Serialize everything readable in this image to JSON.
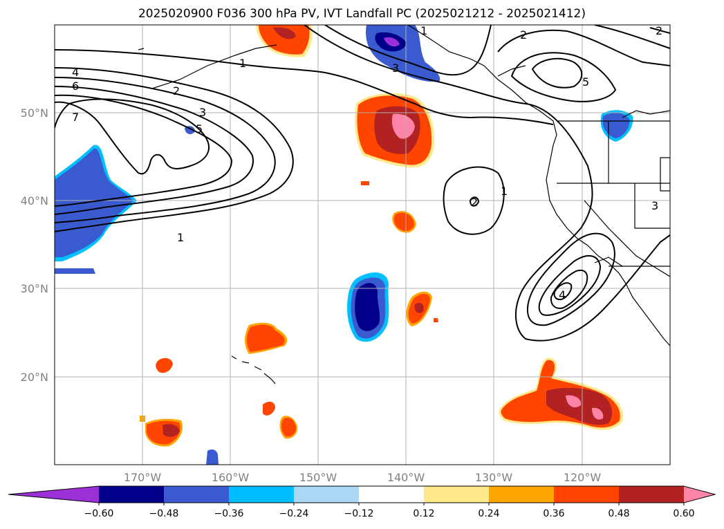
{
  "title": "2025020900 F036 300 hPa PV, IVT Landfall PC (2025021212 - 2025021412)",
  "lat_labels": [
    "50°N",
    "40°N",
    "30°N",
    "20°N"
  ],
  "lon_labels": [
    "170°W",
    "160°W",
    "150°W",
    "140°W",
    "130°W",
    "120°W"
  ],
  "colorbar": {
    "ticks": [
      "−0.60",
      "−0.48",
      "−0.36",
      "−0.24",
      "−0.12",
      "0.12",
      "0.24",
      "0.36",
      "0.48",
      "0.60"
    ],
    "colors": [
      "#9b30d9",
      "#00008b",
      "#3a5bcf",
      "#00bfff",
      "#add8f5",
      "#ffffff",
      "#ffe88a",
      "#ffa500",
      "#ff4500",
      "#b22222",
      "#ff85a8"
    ]
  },
  "contour_labels": [
    "4",
    "6",
    "7",
    "2",
    "3",
    "5",
    "1",
    "1",
    "3",
    "2",
    "5",
    "1",
    "2",
    "3",
    "4",
    "1",
    "2"
  ]
}
